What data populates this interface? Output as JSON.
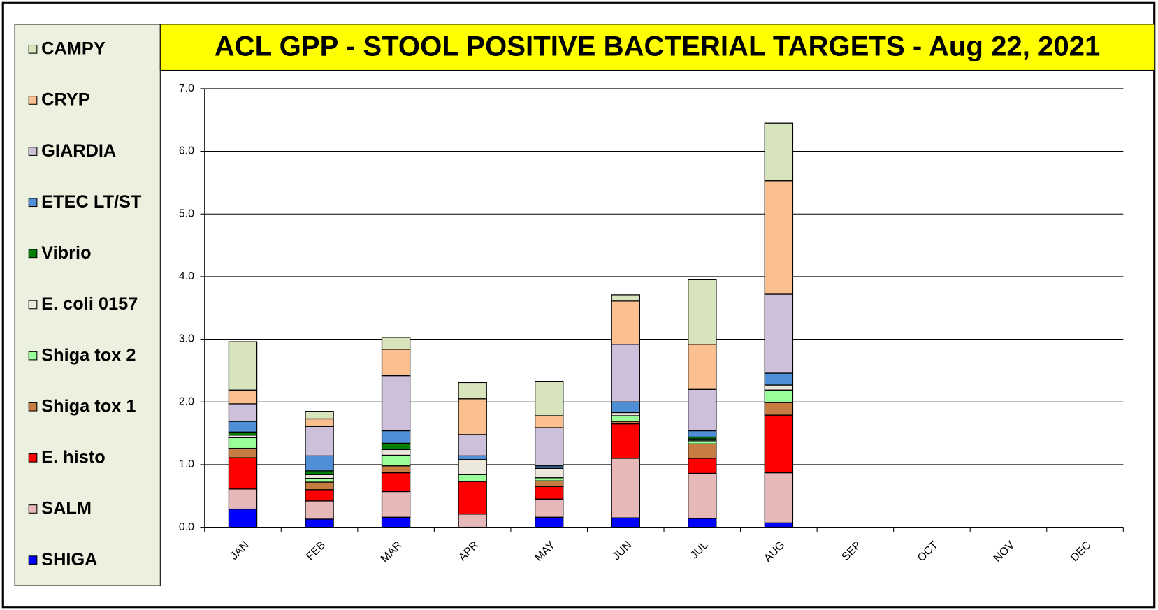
{
  "chart_data": {
    "type": "stacked_bar",
    "title": "ACL GPP - STOOL POSITIVE BACTERIAL TARGETS - Aug 22, 2021",
    "categories": [
      "JAN",
      "FEB",
      "MAR",
      "APR",
      "MAY",
      "JUN",
      "JUL",
      "AUG",
      "SEP",
      "OCT",
      "NOV",
      "DEC"
    ],
    "ylim": [
      0,
      7
    ],
    "yticks": [
      {
        "value": 0,
        "label": "0.0"
      },
      {
        "value": 1,
        "label": "1.0"
      },
      {
        "value": 2,
        "label": "2.0"
      },
      {
        "value": 3,
        "label": "3.0"
      },
      {
        "value": 4,
        "label": "4.0"
      },
      {
        "value": 5,
        "label": "5.0"
      },
      {
        "value": 6,
        "label": "6.0"
      },
      {
        "value": 7,
        "label": "7.0"
      }
    ],
    "grid": true,
    "legend": "left",
    "series": [
      {
        "name": "SHIGA",
        "color": "#0000ff",
        "values": [
          0.29,
          0.13,
          0.16,
          0,
          0.16,
          0.15,
          0.14,
          0.07,
          null,
          null,
          null,
          null
        ]
      },
      {
        "name": "SALM",
        "color": "#e6b9b8",
        "values": [
          0.32,
          0.29,
          0.41,
          0.21,
          0.29,
          0.95,
          0.72,
          0.8,
          null,
          null,
          null,
          null
        ]
      },
      {
        "name": "E. histo",
        "color": "#ff0000",
        "values": [
          0.5,
          0.18,
          0.3,
          0.52,
          0.2,
          0.55,
          0.24,
          0.92,
          null,
          null,
          null,
          null
        ]
      },
      {
        "name": "Shiga tox 1",
        "color": "#c77c42",
        "values": [
          0.15,
          0.12,
          0.11,
          0,
          0.09,
          0.04,
          0.23,
          0.2,
          null,
          null,
          null,
          null
        ]
      },
      {
        "name": "Shiga tox 2",
        "color": "#99ff99",
        "values": [
          0.17,
          0.06,
          0.17,
          0.11,
          0.05,
          0.09,
          0.05,
          0.2,
          null,
          null,
          null,
          null
        ]
      },
      {
        "name": "E. coli 0157",
        "color": "#ece8dc",
        "values": [
          0.04,
          0.06,
          0.09,
          0.24,
          0.15,
          0.05,
          0.03,
          0.08,
          null,
          null,
          null,
          null
        ]
      },
      {
        "name": "Vibrio",
        "color": "#008000",
        "values": [
          0.05,
          0.06,
          0.1,
          0,
          0,
          0,
          0.03,
          0,
          null,
          null,
          null,
          null
        ]
      },
      {
        "name": "ETEC LT/ST",
        "color": "#4f8fd6",
        "values": [
          0.17,
          0.24,
          0.2,
          0.06,
          0.04,
          0.17,
          0.1,
          0.19,
          null,
          null,
          null,
          null
        ]
      },
      {
        "name": "GIARDIA",
        "color": "#ccc0da",
        "values": [
          0.28,
          0.47,
          0.88,
          0.34,
          0.61,
          0.92,
          0.66,
          1.26,
          null,
          null,
          null,
          null
        ]
      },
      {
        "name": "CRYP",
        "color": "#fac090",
        "values": [
          0.22,
          0.12,
          0.42,
          0.57,
          0.19,
          0.69,
          0.72,
          1.81,
          null,
          null,
          null,
          null
        ]
      },
      {
        "name": "CAMPY",
        "color": "#d7e4bc",
        "values": [
          0.77,
          0.12,
          0.19,
          0.26,
          0.55,
          0.1,
          1.03,
          0.92,
          null,
          null,
          null,
          null
        ]
      }
    ]
  }
}
